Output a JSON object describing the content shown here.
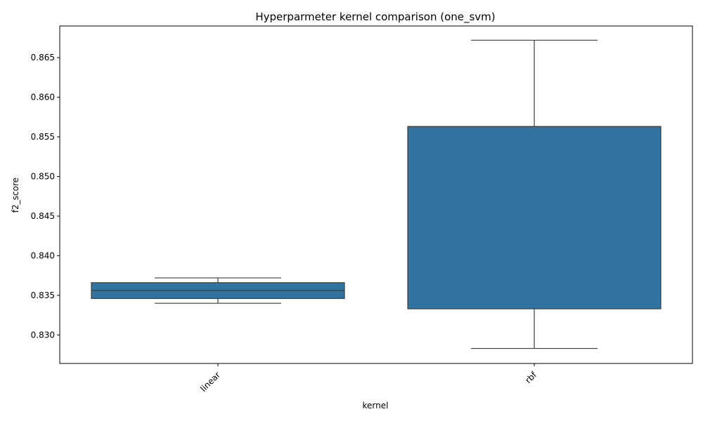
{
  "chart_data": {
    "type": "box",
    "title": "Hyperparmeter kernel comparison (one_svm)",
    "xlabel": "kernel",
    "ylabel": "f2_score",
    "ylim": [
      0.8264,
      0.869
    ],
    "yticks": [
      0.83,
      0.835,
      0.84,
      0.845,
      0.85,
      0.855,
      0.86,
      0.865
    ],
    "ytick_labels": [
      "0.830",
      "0.835",
      "0.840",
      "0.845",
      "0.850",
      "0.855",
      "0.860",
      "0.865"
    ],
    "categories": [
      "linear",
      "rbf"
    ],
    "boxes": [
      {
        "category": "linear",
        "whisker_low": 0.834,
        "q1": 0.8346,
        "median": 0.8356,
        "q3": 0.8366,
        "whisker_high": 0.8372
      },
      {
        "category": "rbf",
        "whisker_low": 0.8283,
        "q1": 0.8333,
        "median": 0.8563,
        "q3": 0.8563,
        "whisker_high": 0.8672
      }
    ],
    "box_color": "#3274a1",
    "line_color": "#3d3d3d",
    "grid": false,
    "xtick_rotation": "45deg"
  }
}
